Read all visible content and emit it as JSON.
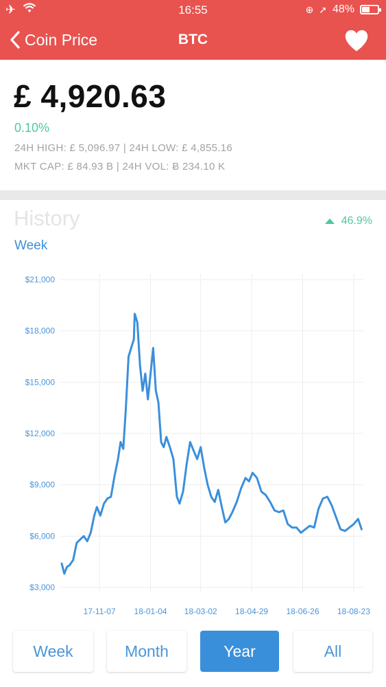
{
  "status_bar": {
    "time": "16:55",
    "battery_text": "48%",
    "battery_level": 0.48,
    "icons": [
      "airplane-icon",
      "wifi-icon",
      "lock-rotation-icon",
      "location-arrow-icon",
      "battery-icon"
    ]
  },
  "nav": {
    "back_label": "Coin Price",
    "title": "BTC",
    "favorite_icon": "heart-icon"
  },
  "price": {
    "value": "£ 4,920.63",
    "change": "0.10%",
    "row1": "24H HIGH: £ 5,096.97 | 24H LOW:  £ 4,855.16",
    "row2": "MKT CAP: £ 84.93 B | 24H VOL: Ƀ 234.10 K"
  },
  "history": {
    "title": "History",
    "change": "46.9%",
    "period_label": "Week"
  },
  "colors": {
    "accent": "#e8534f",
    "positive": "#4cc9a0",
    "line": "#3a8fdb",
    "axis_text": "#4a95d8"
  },
  "chart_data": {
    "type": "line",
    "y_ticks": [
      "$3,000",
      "$6,000",
      "$9,000",
      "$12,000",
      "$15,000",
      "$18,000",
      "$21,000"
    ],
    "x_ticks": [
      "17-11-07",
      "18-01-04",
      "18-03-02",
      "18-04-29",
      "18-06-26",
      "18-08-23"
    ],
    "ylim": [
      3000,
      21000
    ],
    "xlim": [
      "2017-09-25",
      "2018-09-03"
    ],
    "grid": true,
    "series": [
      {
        "x": [
          "2017-09-25",
          "2017-09-28",
          "2017-10-01",
          "2017-10-04",
          "2017-10-08",
          "2017-10-12",
          "2017-10-16",
          "2017-10-20",
          "2017-10-24",
          "2017-10-28",
          "2017-11-01",
          "2017-11-04",
          "2017-11-08",
          "2017-11-12",
          "2017-11-16",
          "2017-11-20",
          "2017-11-24",
          "2017-11-28",
          "2017-12-01",
          "2017-12-04",
          "2017-12-07",
          "2017-12-10",
          "2017-12-13",
          "2017-12-16",
          "2017-12-17",
          "2017-12-20",
          "2017-12-23",
          "2017-12-26",
          "2017-12-29",
          "2018-01-01",
          "2018-01-04",
          "2018-01-07",
          "2018-01-10",
          "2018-01-13",
          "2018-01-16",
          "2018-01-19",
          "2018-01-22",
          "2018-01-26",
          "2018-01-30",
          "2018-02-03",
          "2018-02-06",
          "2018-02-10",
          "2018-02-14",
          "2018-02-18",
          "2018-02-22",
          "2018-02-26",
          "2018-03-02",
          "2018-03-06",
          "2018-03-10",
          "2018-03-14",
          "2018-03-18",
          "2018-03-22",
          "2018-03-26",
          "2018-03-30",
          "2018-04-03",
          "2018-04-07",
          "2018-04-12",
          "2018-04-17",
          "2018-04-22",
          "2018-04-26",
          "2018-04-30",
          "2018-05-05",
          "2018-05-10",
          "2018-05-15",
          "2018-05-20",
          "2018-05-25",
          "2018-05-30",
          "2018-06-04",
          "2018-06-09",
          "2018-06-14",
          "2018-06-19",
          "2018-06-24",
          "2018-06-29",
          "2018-07-04",
          "2018-07-09",
          "2018-07-14",
          "2018-07-19",
          "2018-07-24",
          "2018-07-29",
          "2018-08-03",
          "2018-08-08",
          "2018-08-13",
          "2018-08-18",
          "2018-08-23",
          "2018-08-28",
          "2018-09-01"
        ],
        "y": [
          4400,
          3800,
          4200,
          4300,
          4600,
          5600,
          5800,
          6000,
          5700,
          6200,
          7200,
          7700,
          7200,
          7900,
          8200,
          8300,
          9500,
          10500,
          11500,
          11100,
          13500,
          16500,
          17000,
          17500,
          19000,
          18500,
          16000,
          14500,
          15500,
          14000,
          15500,
          17000,
          14500,
          13800,
          11500,
          11200,
          11800,
          11200,
          10500,
          8300,
          7900,
          8600,
          10200,
          11500,
          11000,
          10500,
          11200,
          10000,
          9000,
          8300,
          8000,
          8700,
          7700,
          6800,
          7000,
          7400,
          8000,
          8800,
          9400,
          9200,
          9700,
          9400,
          8600,
          8400,
          8000,
          7500,
          7400,
          7500,
          6700,
          6500,
          6500,
          6200,
          6400,
          6600,
          6500,
          7600,
          8200,
          8300,
          7800,
          7100,
          6400,
          6300,
          6500,
          6700,
          7000,
          6400
        ]
      }
    ]
  },
  "tabs": [
    {
      "label": "Week",
      "active": false
    },
    {
      "label": "Month",
      "active": false
    },
    {
      "label": "Year",
      "active": true
    },
    {
      "label": "All",
      "active": false
    }
  ]
}
